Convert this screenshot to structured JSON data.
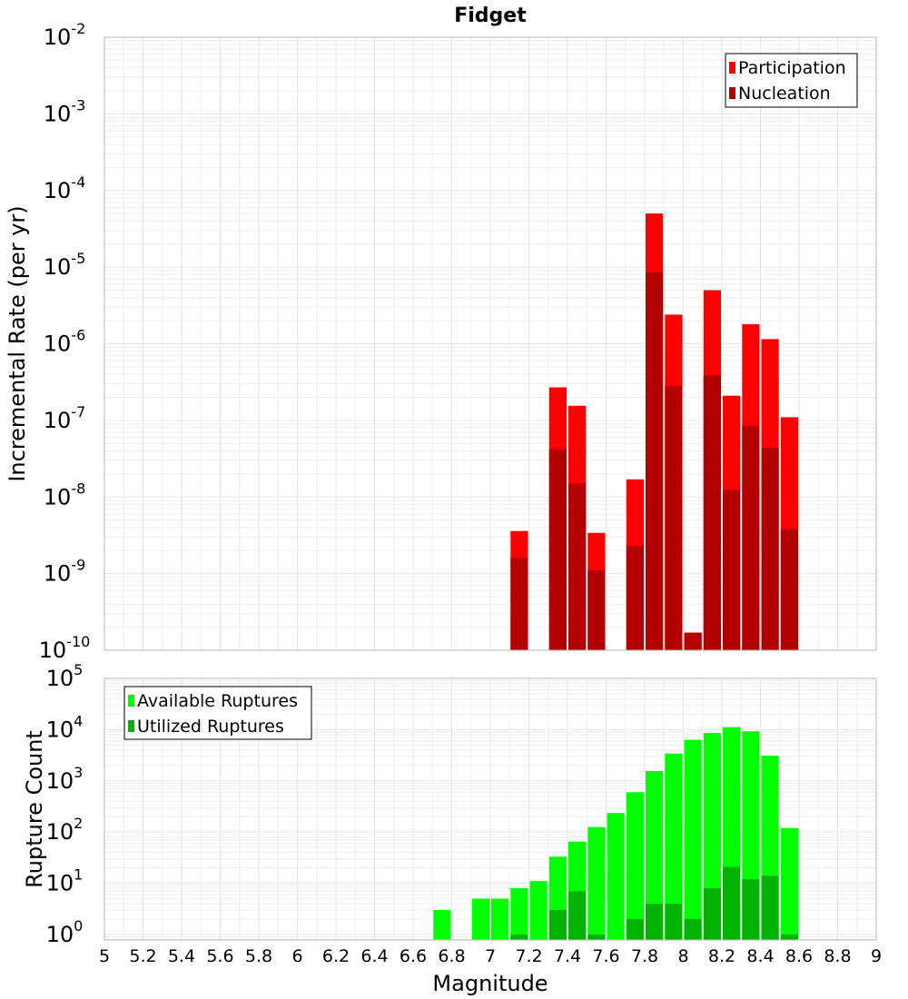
{
  "colors": {
    "participation": "#ff0000",
    "nucleation": "#b30000",
    "available": "#00ff00",
    "utilized": "#00b300"
  },
  "chart_data": [
    {
      "type": "bar",
      "title": "Fidget",
      "xlabel": "",
      "ylabel": "Incremental Rate (per yr)",
      "yscale": "log",
      "ylim": [
        1e-10,
        0.01
      ],
      "xlim": [
        5,
        9
      ],
      "grid": true,
      "legend_position": "top-right",
      "y_ticks": [
        {
          "base": "10",
          "exp": "-10"
        },
        {
          "base": "10",
          "exp": "-9"
        },
        {
          "base": "10",
          "exp": "-8"
        },
        {
          "base": "10",
          "exp": "-7"
        },
        {
          "base": "10",
          "exp": "-6"
        },
        {
          "base": "10",
          "exp": "-5"
        },
        {
          "base": "10",
          "exp": "-4"
        },
        {
          "base": "10",
          "exp": "-3"
        },
        {
          "base": "10",
          "exp": "-2"
        }
      ],
      "series": [
        {
          "name": "Participation",
          "color_key": "participation",
          "points": [
            {
              "x": 7.15,
              "y": 3.6e-09
            },
            {
              "x": 7.35,
              "y": 2.7e-07
            },
            {
              "x": 7.45,
              "y": 1.55e-07
            },
            {
              "x": 7.55,
              "y": 3.4e-09
            },
            {
              "x": 7.75,
              "y": 1.7e-08
            },
            {
              "x": 7.85,
              "y": 5e-05
            },
            {
              "x": 7.95,
              "y": 2.4e-06
            },
            {
              "x": 8.05,
              "y": 1.7e-10
            },
            {
              "x": 8.15,
              "y": 5e-06
            },
            {
              "x": 8.25,
              "y": 2.1e-07
            },
            {
              "x": 8.35,
              "y": 1.8e-06
            },
            {
              "x": 8.45,
              "y": 1.15e-06
            },
            {
              "x": 8.55,
              "y": 1.1e-07
            }
          ]
        },
        {
          "name": "Nucleation",
          "color_key": "nucleation",
          "points": [
            {
              "x": 7.15,
              "y": 1.6e-09
            },
            {
              "x": 7.35,
              "y": 4.2e-08
            },
            {
              "x": 7.45,
              "y": 1.5e-08
            },
            {
              "x": 7.55,
              "y": 1.1e-09
            },
            {
              "x": 7.75,
              "y": 2.3e-09
            },
            {
              "x": 7.85,
              "y": 8.5e-06
            },
            {
              "x": 7.95,
              "y": 2.8e-07
            },
            {
              "x": 8.05,
              "y": 1.7e-10
            },
            {
              "x": 8.15,
              "y": 3.9e-07
            },
            {
              "x": 8.25,
              "y": 1.25e-08
            },
            {
              "x": 8.35,
              "y": 8.5e-08
            },
            {
              "x": 8.45,
              "y": 4.4e-08
            },
            {
              "x": 8.55,
              "y": 3.8e-09
            }
          ]
        }
      ]
    },
    {
      "type": "bar",
      "title": "",
      "xlabel": "Magnitude",
      "ylabel": "Rupture Count",
      "yscale": "log",
      "ylim": [
        0.78,
        100000
      ],
      "xlim": [
        5,
        9
      ],
      "grid": true,
      "legend_position": "top-left",
      "x_ticks": [
        "5",
        "5.2",
        "5.4",
        "5.6",
        "5.8",
        "6",
        "6.2",
        "6.4",
        "6.6",
        "6.8",
        "7",
        "7.2",
        "7.4",
        "7.6",
        "7.8",
        "8",
        "8.2",
        "8.4",
        "8.6",
        "8.8",
        "9"
      ],
      "y_ticks": [
        {
          "base": "10",
          "exp": "0"
        },
        {
          "base": "10",
          "exp": "1"
        },
        {
          "base": "10",
          "exp": "2"
        },
        {
          "base": "10",
          "exp": "3"
        },
        {
          "base": "10",
          "exp": "4"
        },
        {
          "base": "10",
          "exp": "5"
        }
      ],
      "series": [
        {
          "name": "Available Ruptures",
          "color_key": "available",
          "points": [
            {
              "x": 6.75,
              "y": 3
            },
            {
              "x": 6.95,
              "y": 5
            },
            {
              "x": 7.05,
              "y": 5
            },
            {
              "x": 7.15,
              "y": 8
            },
            {
              "x": 7.25,
              "y": 11
            },
            {
              "x": 7.35,
              "y": 33
            },
            {
              "x": 7.45,
              "y": 65
            },
            {
              "x": 7.55,
              "y": 125
            },
            {
              "x": 7.65,
              "y": 235
            },
            {
              "x": 7.75,
              "y": 600
            },
            {
              "x": 7.85,
              "y": 1550
            },
            {
              "x": 7.95,
              "y": 3400
            },
            {
              "x": 8.05,
              "y": 6300
            },
            {
              "x": 8.15,
              "y": 8600
            },
            {
              "x": 8.25,
              "y": 11200
            },
            {
              "x": 8.35,
              "y": 9300
            },
            {
              "x": 8.45,
              "y": 3100
            },
            {
              "x": 8.55,
              "y": 120
            }
          ]
        },
        {
          "name": "Utilized Ruptures",
          "color_key": "utilized",
          "points": [
            {
              "x": 7.15,
              "y": 1
            },
            {
              "x": 7.35,
              "y": 3
            },
            {
              "x": 7.45,
              "y": 7
            },
            {
              "x": 7.55,
              "y": 1
            },
            {
              "x": 7.75,
              "y": 2
            },
            {
              "x": 7.85,
              "y": 4
            },
            {
              "x": 7.95,
              "y": 4
            },
            {
              "x": 8.05,
              "y": 2
            },
            {
              "x": 8.15,
              "y": 8
            },
            {
              "x": 8.25,
              "y": 21
            },
            {
              "x": 8.35,
              "y": 12
            },
            {
              "x": 8.45,
              "y": 14
            },
            {
              "x": 8.55,
              "y": 1
            }
          ]
        }
      ]
    }
  ]
}
